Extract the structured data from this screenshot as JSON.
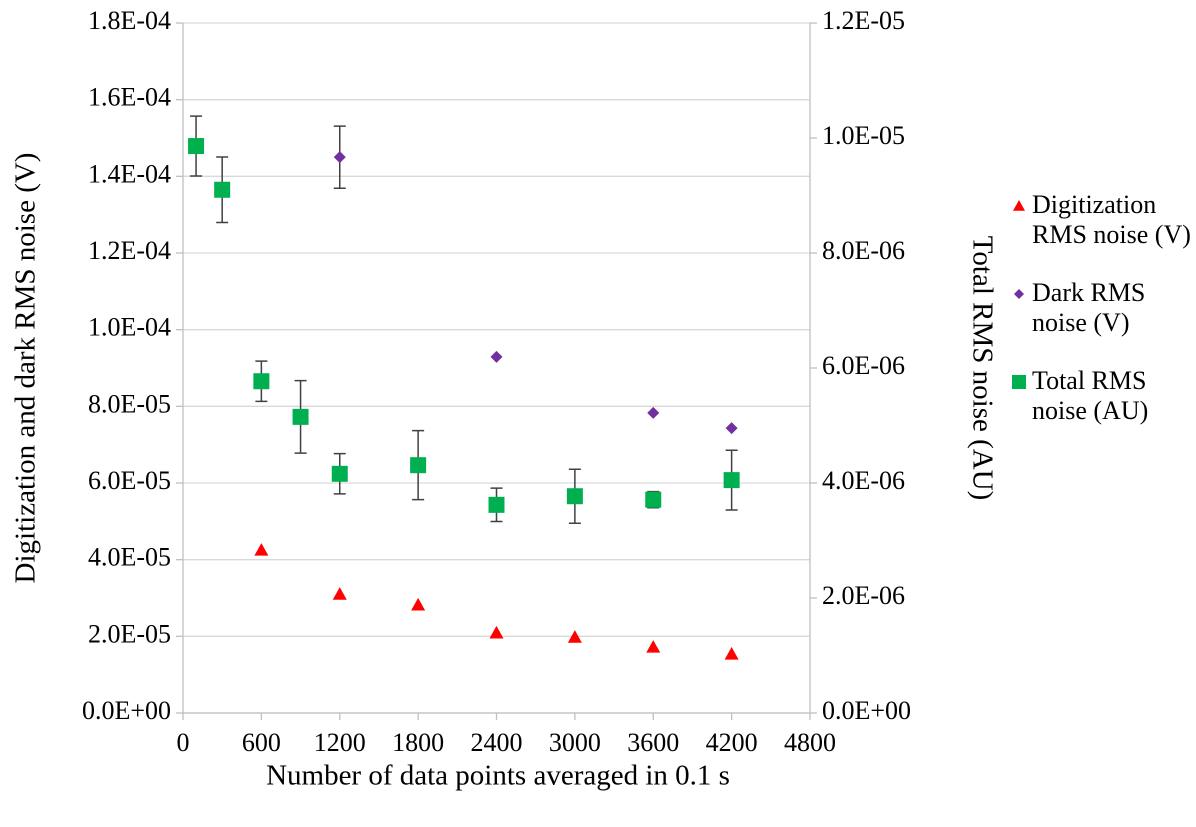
{
  "chart_data": {
    "type": "scatter",
    "x_label": "Number of data points averaged in 0.1 s",
    "y_label": "Digitization and dark RMS noise (V)",
    "y2_label": "Total RMS noise (AU)",
    "xlim": [
      0,
      4800
    ],
    "xticks": [
      0,
      600,
      1200,
      1800,
      2400,
      3000,
      3600,
      4200,
      4800
    ],
    "ylim": [
      0,
      0.00018
    ],
    "yticks": [
      {
        "value": 0,
        "label": "0.0E+00"
      },
      {
        "value": 2e-05,
        "label": "2.0E-05"
      },
      {
        "value": 4e-05,
        "label": "4.0E-05"
      },
      {
        "value": 6e-05,
        "label": "6.0E-05"
      },
      {
        "value": 8e-05,
        "label": "8.0E-05"
      },
      {
        "value": 0.0001,
        "label": "1.0E-04"
      },
      {
        "value": 0.00012,
        "label": "1.2E-04"
      },
      {
        "value": 0.00014,
        "label": "1.4E-04"
      },
      {
        "value": 0.00016,
        "label": "1.6E-04"
      },
      {
        "value": 0.00018,
        "label": "1.8E-04"
      }
    ],
    "y2lim": [
      0,
      1.2e-05
    ],
    "y2ticks": [
      {
        "value": 0,
        "label": "0.0E+00"
      },
      {
        "value": 2e-06,
        "label": "2.0E-06"
      },
      {
        "value": 4e-06,
        "label": "4.0E-06"
      },
      {
        "value": 6e-06,
        "label": "6.0E-06"
      },
      {
        "value": 8e-06,
        "label": "8.0E-06"
      },
      {
        "value": 1e-05,
        "label": "1.0E-05"
      },
      {
        "value": 1.2e-05,
        "label": "1.2E-05"
      }
    ],
    "grid": true,
    "legend": "right",
    "series": [
      {
        "name": "Digitization RMS noise (V)",
        "color": "#ff0000",
        "marker": "triangle",
        "x": [
          600,
          1200,
          1800,
          2400,
          3000,
          3600,
          4200
        ],
        "values": [
          4.25e-05,
          3.1e-05,
          2.82e-05,
          2.09e-05,
          1.98e-05,
          1.72e-05,
          1.54e-05
        ]
      },
      {
        "name": "Dark RMS noise (V)",
        "color": "#7030a0",
        "marker": "diamond",
        "x": [
          1200,
          2400,
          3600,
          4200
        ],
        "values": [
          0.000145,
          9.29e-05,
          7.83e-05,
          7.43e-05
        ],
        "errors": [
          8.1e-06,
          null,
          null,
          null
        ]
      },
      {
        "name": "Total RMS noise (AU)",
        "color": "#00b050",
        "marker": "square",
        "axis": "y2",
        "x": [
          100,
          300,
          600,
          900,
          1200,
          1800,
          2400,
          3000,
          3600,
          4200
        ],
        "values": [
          9.86e-06,
          9.1e-06,
          5.77e-06,
          5.15e-06,
          4.16e-06,
          4.31e-06,
          3.62e-06,
          3.77e-06,
          3.71e-06,
          4.05e-06
        ],
        "errors": [
          5.2e-07,
          5.7e-07,
          3.5e-07,
          6.3e-07,
          3.5e-07,
          6e-07,
          2.9e-07,
          4.7e-07,
          1.4e-07,
          5.2e-07
        ]
      }
    ]
  }
}
